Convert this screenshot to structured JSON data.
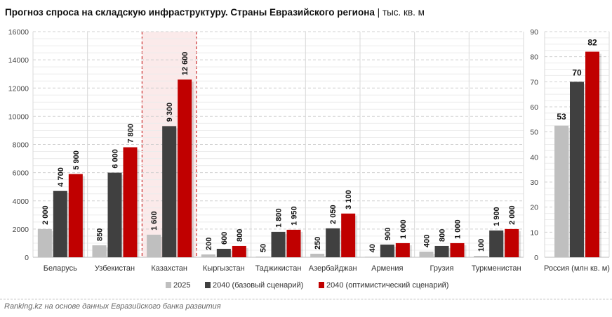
{
  "title": "Прогноз спроса на складскую инфраструктуру. Страны Евразийского региона",
  "unit": "| тыс. кв. м",
  "footer": "Ranking.kz на основе данных Евразийского банка развития",
  "colors": {
    "2025": "#bfbfbf",
    "base": "#404040",
    "optimistic": "#c00000",
    "highlight_bg": "#fbeaea",
    "highlight_border": "#c00000"
  },
  "chart_data": [
    {
      "type": "bar",
      "title": "",
      "ylim": [
        0,
        16000
      ],
      "yticks": [
        "0",
        "2000",
        "4000",
        "6000",
        "8000",
        "10000",
        "12000",
        "14000",
        "16000"
      ],
      "grid": true,
      "legend": "bottom",
      "highlighted_category": "Казахстан",
      "categories": [
        "Беларусь",
        "Узбекистан",
        "Казахстан",
        "Кыргызстан",
        "Таджикистан",
        "Азербайджан",
        "Армения",
        "Грузия",
        "Туркменистан"
      ],
      "series": [
        {
          "name": "2025",
          "values": [
            2000,
            850,
            1600,
            200,
            50,
            250,
            40,
            400,
            100
          ],
          "labels": [
            "2 000",
            "850",
            "1 600",
            "200",
            "50",
            "250",
            "40",
            "400",
            "100"
          ]
        },
        {
          "name": "2040 (базовый сценарий)",
          "values": [
            4700,
            6000,
            9300,
            600,
            1800,
            2050,
            900,
            800,
            1900
          ],
          "labels": [
            "4 700",
            "6 000",
            "9 300",
            "600",
            "1 800",
            "2 050",
            "900",
            "800",
            "1 900"
          ]
        },
        {
          "name": "2040 (оптимистический сценарий)",
          "values": [
            5900,
            7800,
            12600,
            800,
            1950,
            3100,
            1000,
            1000,
            2000
          ],
          "labels": [
            "5 900",
            "7 800",
            "12 600",
            "800",
            "1 950",
            "3 100",
            "1 000",
            "1 000",
            "2 000"
          ]
        }
      ]
    },
    {
      "type": "bar",
      "ylim": [
        0,
        90
      ],
      "yticks": [
        "0",
        "10",
        "20",
        "30",
        "40",
        "50",
        "60",
        "70",
        "80",
        "90"
      ],
      "grid": true,
      "categories": [
        "Россия (млн кв. м)"
      ],
      "series": [
        {
          "name": "2025",
          "values": [
            52.5
          ],
          "labels": [
            "53"
          ]
        },
        {
          "name": "2040 (базовый сценарий)",
          "values": [
            70
          ],
          "labels": [
            "70"
          ]
        },
        {
          "name": "2040 (оптимистический сценарий)",
          "values": [
            82
          ],
          "labels": [
            "82"
          ]
        }
      ]
    }
  ]
}
